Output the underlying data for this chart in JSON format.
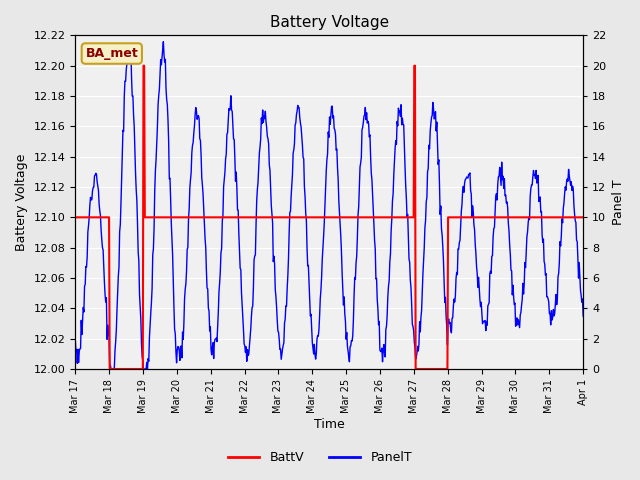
{
  "title": "Battery Voltage",
  "xlabel": "Time",
  "ylabel_left": "Battery Voltage",
  "ylabel_right": "Panel T",
  "bg_color": "#e8e8e8",
  "plot_bg_color": "#f0f0f0",
  "legend_label_battv": "BattV",
  "legend_label_panelt": "PanelT",
  "battv_color": "red",
  "panelt_color": "blue",
  "ylim_left": [
    12.0,
    12.22
  ],
  "ylim_right": [
    0,
    22
  ],
  "yticks_left": [
    12.0,
    12.02,
    12.04,
    12.06,
    12.08,
    12.1,
    12.12,
    12.14,
    12.16,
    12.18,
    12.2,
    12.22
  ],
  "yticks_right": [
    0,
    2,
    4,
    6,
    8,
    10,
    12,
    14,
    16,
    18,
    20,
    22
  ],
  "xtick_positions": [
    0,
    1,
    2,
    3,
    4,
    5,
    6,
    7,
    8,
    9,
    10,
    11,
    12,
    13,
    14,
    15
  ],
  "xtick_labels": [
    "Mar 17",
    "Mar 18",
    "Mar 19",
    "Mar 20",
    "Mar 21",
    "Mar 22",
    "Mar 23",
    "Mar 24",
    "Mar 25",
    "Mar 26",
    "Mar 27",
    "Mar 28",
    "Mar 29",
    "Mar 30",
    "Mar 31",
    "Apr 1"
  ],
  "annotation_text": "BA_met",
  "annotation_box_color": "#f5f0c8",
  "annotation_box_edge": "#c8a020"
}
